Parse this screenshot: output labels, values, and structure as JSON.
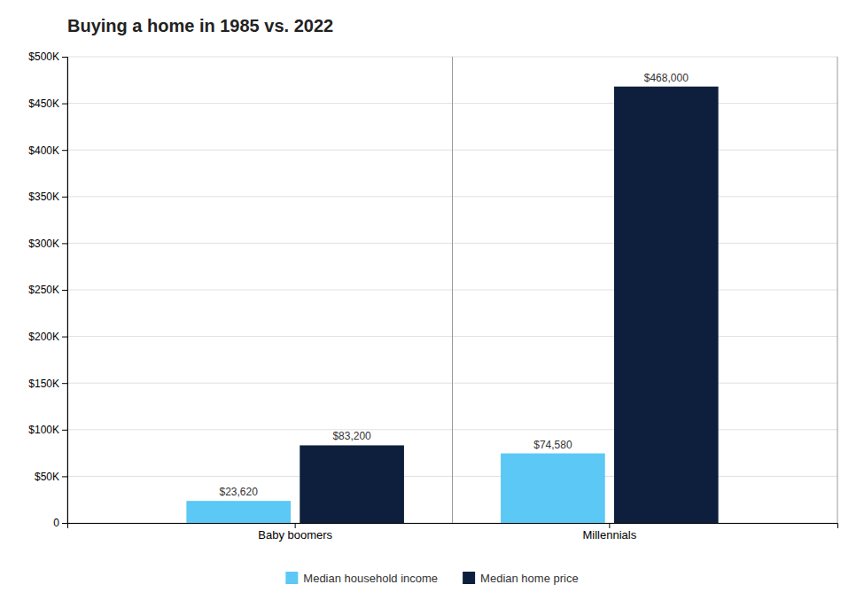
{
  "chart_data": {
    "type": "bar",
    "title": "Buying a home in 1985 vs. 2022",
    "categories": [
      "Baby boomers",
      "Millennials"
    ],
    "series": [
      {
        "name": "Median household income",
        "color": "#5BC8F5",
        "values": [
          23620,
          74580
        ],
        "value_labels": [
          "$23,620",
          "$74,580"
        ]
      },
      {
        "name": "Median home price",
        "color": "#0D1F3C",
        "values": [
          83200,
          468000
        ],
        "value_labels": [
          "$83,200",
          "$468,000"
        ]
      }
    ],
    "ylim": [
      0,
      500000
    ],
    "yticks": [
      0,
      {
        "value": 50000,
        "label": "$50K"
      },
      {
        "value": 100000,
        "label": "$100K"
      },
      {
        "value": 150000,
        "label": "$150K"
      },
      {
        "value": 200000,
        "label": "$200K"
      },
      {
        "value": 250000,
        "label": "$250K"
      },
      {
        "value": 300000,
        "label": "$300K"
      },
      {
        "value": 350000,
        "label": "$350K"
      },
      {
        "value": 400000,
        "label": "$400K"
      },
      {
        "value": 450000,
        "label": "$450K"
      },
      {
        "value": 500000,
        "label": "$500K"
      }
    ],
    "grid": true,
    "data_labels": true,
    "legend": "bottom"
  }
}
